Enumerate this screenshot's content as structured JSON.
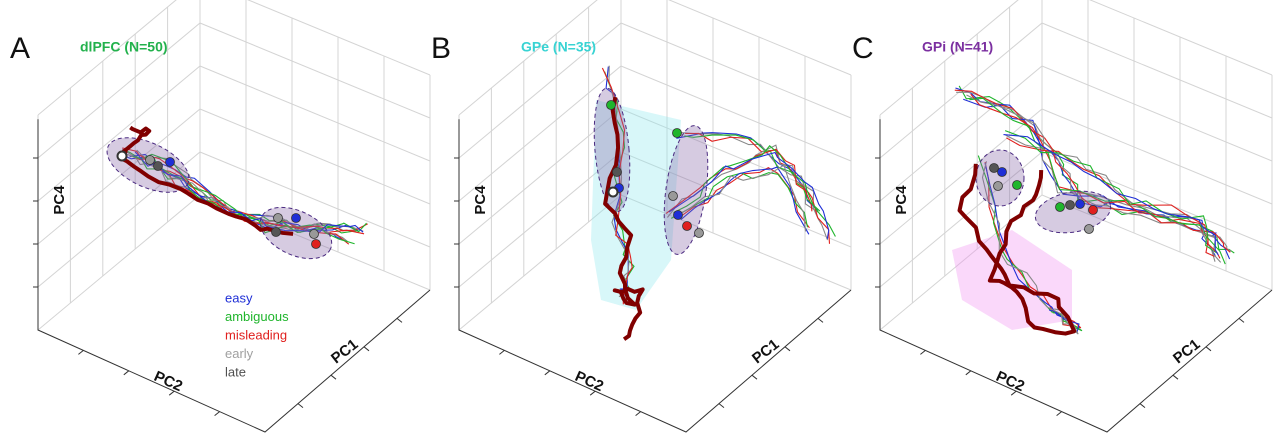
{
  "panels": [
    {
      "letter": "A",
      "title": "dlPFC (N=50)",
      "title_color": "#22b14c",
      "axes": {
        "vertical": "PC4",
        "left": "PC2",
        "right": "PC1"
      }
    },
    {
      "letter": "B",
      "title": "GPe (N=35)",
      "title_color": "#38d3d3",
      "axes": {
        "vertical": "PC4",
        "left": "PC2",
        "right": "PC1"
      }
    },
    {
      "letter": "C",
      "title": "GPi (N=41)",
      "title_color": "#7b2fa0",
      "axes": {
        "vertical": "PC4",
        "left": "PC2",
        "right": "PC1"
      }
    }
  ],
  "legend": [
    {
      "label": "easy",
      "color": "#1f2fd6"
    },
    {
      "label": "ambiguous",
      "color": "#1fb52c"
    },
    {
      "label": "misleading",
      "color": "#e0201e"
    },
    {
      "label": "early",
      "color": "#a0a0a0"
    },
    {
      "label": "late",
      "color": "#505050"
    }
  ]
}
